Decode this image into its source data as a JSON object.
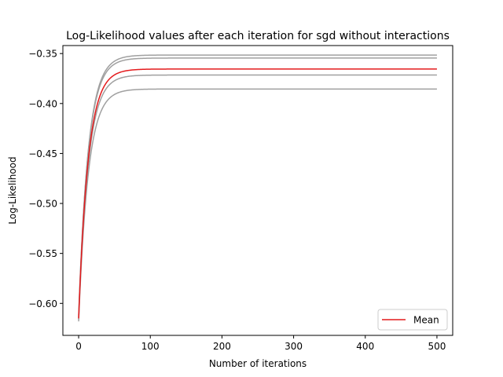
{
  "chart_data": {
    "type": "line",
    "title": "Log-Likelihood values after each iteration for sgd without interactions",
    "xlabel": "Number of iterations",
    "ylabel": "Log-Likelihood",
    "xlim": [
      -22,
      522
    ],
    "ylim": [
      -0.632,
      -0.342
    ],
    "xticks": [
      0,
      100,
      200,
      300,
      400,
      500
    ],
    "xtick_labels": [
      "0",
      "100",
      "200",
      "300",
      "400",
      "500"
    ],
    "yticks": [
      -0.35,
      -0.4,
      -0.45,
      -0.5,
      -0.55,
      -0.6
    ],
    "ytick_labels": [
      "−0.35",
      "−0.40",
      "−0.45",
      "−0.50",
      "−0.55",
      "−0.60"
    ],
    "grid": false,
    "legend": {
      "placement": "lower-right",
      "entries": [
        "Mean"
      ]
    },
    "n_iterations": 500,
    "curve_rate": 0.075,
    "series": [
      {
        "role": "run",
        "color": "#a0a0a0",
        "start": -0.614,
        "final": -0.3515
      },
      {
        "role": "run",
        "color": "#a0a0a0",
        "start": -0.612,
        "final": -0.3545
      },
      {
        "role": "run",
        "color": "#a0a0a0",
        "start": -0.616,
        "final": -0.3715
      },
      {
        "role": "run",
        "color": "#a0a0a0",
        "start": -0.618,
        "final": -0.3855
      },
      {
        "role": "mean",
        "name": "Mean",
        "color": "#e41a1c",
        "start": -0.615,
        "final": -0.3655
      }
    ]
  }
}
